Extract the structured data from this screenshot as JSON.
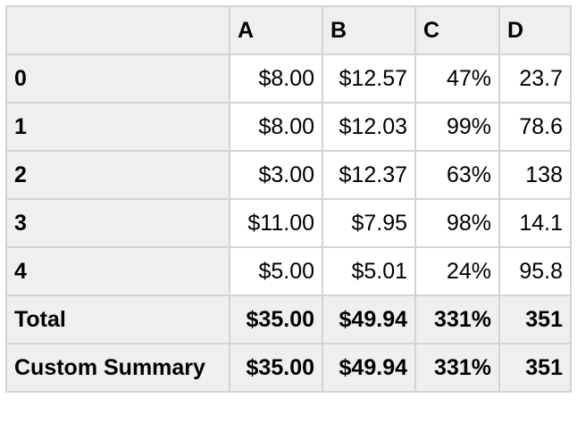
{
  "table": {
    "columns": [
      "A",
      "B",
      "C",
      "D"
    ],
    "rows": [
      {
        "index": "0",
        "A": "$8.00",
        "B": "$12.57",
        "C": "47%",
        "D": "23.7"
      },
      {
        "index": "1",
        "A": "$8.00",
        "B": "$12.03",
        "C": "99%",
        "D": "78.6"
      },
      {
        "index": "2",
        "A": "$3.00",
        "B": "$12.37",
        "C": "63%",
        "D": "138"
      },
      {
        "index": "3",
        "A": "$11.00",
        "B": "$7.95",
        "C": "98%",
        "D": "14.1"
      },
      {
        "index": "4",
        "A": "$5.00",
        "B": "$5.01",
        "C": "24%",
        "D": "95.8"
      }
    ],
    "summary_rows": [
      {
        "label": "Total",
        "A": "$35.00",
        "B": "$49.94",
        "C": "331%",
        "D": "351"
      },
      {
        "label": "Custom Summary",
        "A": "$35.00",
        "B": "$49.94",
        "C": "331%",
        "D": "351"
      }
    ]
  }
}
